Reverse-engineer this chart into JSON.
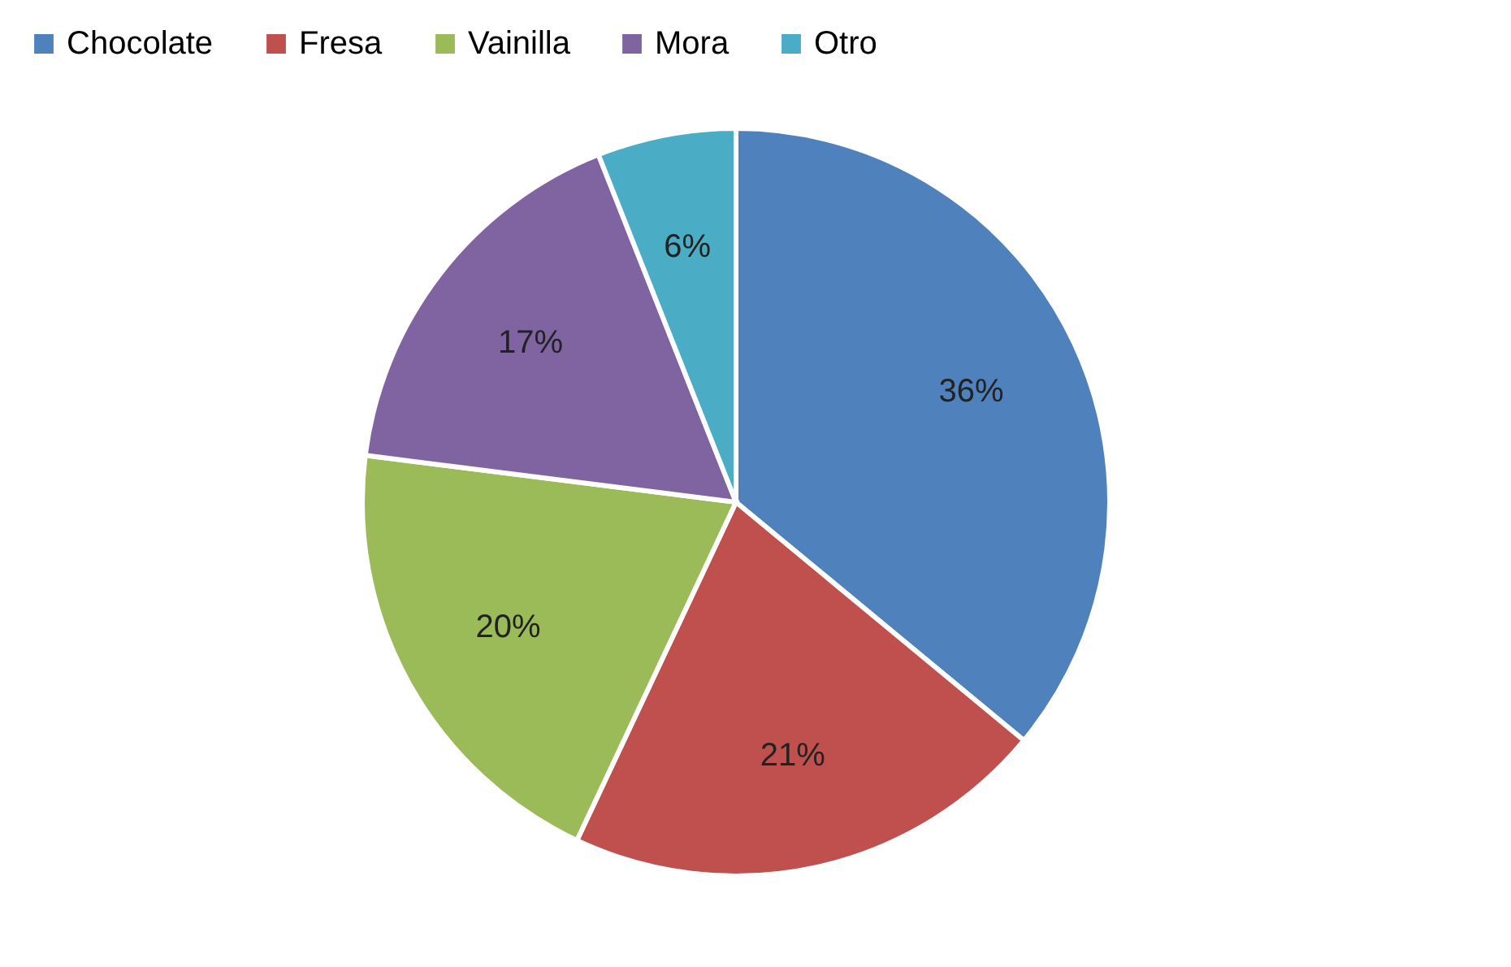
{
  "chart_data": {
    "type": "pie",
    "categories": [
      "Chocolate",
      "Fresa",
      "Vainilla",
      "Mora",
      "Otro"
    ],
    "values": [
      36,
      21,
      20,
      17,
      6
    ],
    "colors": [
      "#4f81bd",
      "#c0504d",
      "#9bbb59",
      "#8064a2",
      "#4bacc6"
    ],
    "value_labels": [
      "36%",
      "21%",
      "20%",
      "17%",
      "6%"
    ],
    "legend": "top"
  }
}
